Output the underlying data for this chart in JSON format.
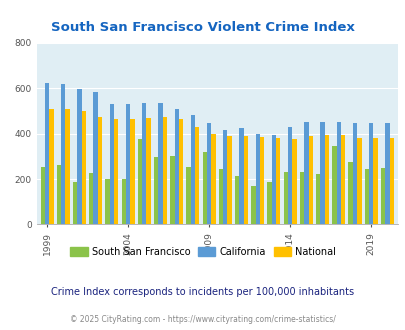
{
  "title": "South San Francisco Violent Crime Index",
  "years": [
    1999,
    2000,
    2001,
    2002,
    2003,
    2004,
    2005,
    2006,
    2007,
    2008,
    2009,
    2010,
    2011,
    2012,
    2013,
    2014,
    2015,
    2016,
    2017,
    2018,
    2019,
    2020
  ],
  "ssf": [
    255,
    260,
    185,
    225,
    200,
    200,
    375,
    295,
    300,
    255,
    320,
    245,
    215,
    170,
    185,
    230,
    230,
    220,
    345,
    275,
    245,
    250
  ],
  "california": [
    625,
    620,
    595,
    585,
    530,
    530,
    535,
    535,
    510,
    480,
    445,
    415,
    425,
    400,
    395,
    430,
    450,
    450,
    450,
    445,
    445,
    448
  ],
  "national": [
    510,
    508,
    500,
    475,
    465,
    465,
    470,
    475,
    465,
    430,
    400,
    390,
    390,
    385,
    380,
    375,
    390,
    395,
    395,
    380,
    380,
    383
  ],
  "ssf_color": "#8BC34A",
  "california_color": "#5B9BD5",
  "national_color": "#FFC000",
  "bg_color": "#E0EEF4",
  "title_color": "#1565C0",
  "note_color": "#1A237E",
  "footnote_color": "#888888",
  "ylim": [
    0,
    800
  ],
  "yticks": [
    0,
    200,
    400,
    600,
    800
  ],
  "legend_labels": [
    "South San Francisco",
    "California",
    "National"
  ],
  "note": "Crime Index corresponds to incidents per 100,000 inhabitants",
  "footnote": "© 2025 CityRating.com - https://www.cityrating.com/crime-statistics/",
  "bar_width": 0.27,
  "x_tick_years": [
    1999,
    2004,
    2009,
    2014,
    2019
  ]
}
